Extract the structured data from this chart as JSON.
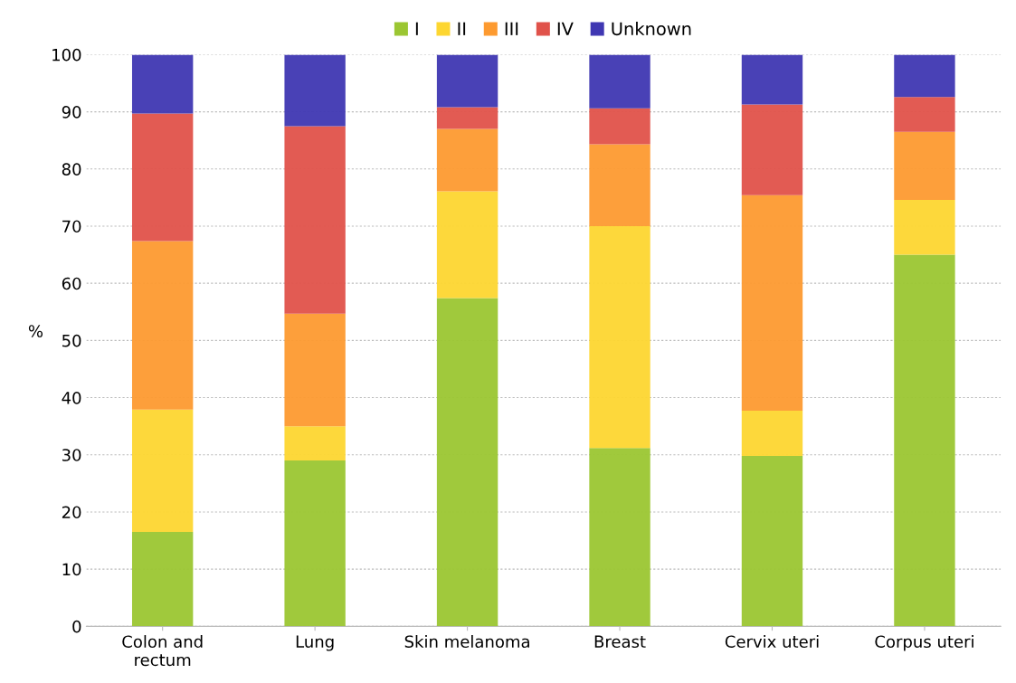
{
  "chart_data": {
    "type": "bar",
    "stacked": true,
    "ylabel": "%",
    "categories": [
      "Colon and\nrectum",
      "Lung",
      "Skin melanoma",
      "Breast",
      "Cervix uteri",
      "Corpus uteri"
    ],
    "series": [
      {
        "name": "I",
        "color": "#9bc632",
        "values": [
          16.5,
          29.0,
          57.4,
          31.2,
          29.8,
          65.0
        ]
      },
      {
        "name": "II",
        "color": "#fdd630",
        "values": [
          21.4,
          6.0,
          18.7,
          38.8,
          7.9,
          9.6
        ]
      },
      {
        "name": "III",
        "color": "#fd9a30",
        "values": [
          29.5,
          19.7,
          10.9,
          14.3,
          37.7,
          11.9
        ]
      },
      {
        "name": "IV",
        "color": "#e0524a",
        "values": [
          22.3,
          32.8,
          3.8,
          6.3,
          15.9,
          6.1
        ]
      },
      {
        "name": "Unknown",
        "color": "#3f37b2",
        "values": [
          10.3,
          12.5,
          9.2,
          9.4,
          8.7,
          7.4
        ]
      }
    ],
    "ylim": [
      0,
      100
    ],
    "yticks": [
      0,
      10,
      20,
      30,
      40,
      50,
      60,
      70,
      80,
      90,
      100
    ],
    "grid": "y",
    "legend": "top"
  }
}
